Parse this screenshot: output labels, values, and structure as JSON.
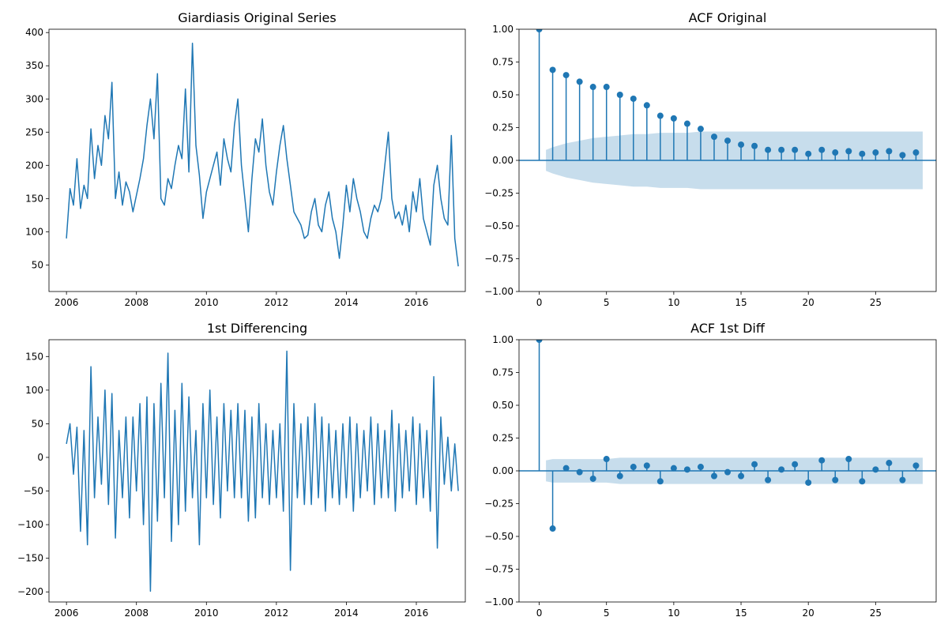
{
  "chart_data": [
    {
      "type": "line",
      "title": "Giardiasis Original Series",
      "xlabel": "",
      "ylabel": "",
      "xlim": [
        2005.5,
        2017.4
      ],
      "ylim": [
        10,
        405
      ],
      "xticks": [
        2006,
        2008,
        2010,
        2012,
        2014,
        2016
      ],
      "yticks": [
        50,
        100,
        150,
        200,
        250,
        300,
        350,
        400
      ],
      "grid": false,
      "color": "#1f77b4",
      "series": [
        {
          "x": [
            2006.0,
            2006.1,
            2006.2,
            2006.3,
            2006.4,
            2006.5,
            2006.6,
            2006.7,
            2006.8,
            2006.9,
            2007.0,
            2007.1,
            2007.2,
            2007.3,
            2007.4,
            2007.5,
            2007.6,
            2007.7,
            2007.8,
            2007.9,
            2008.0,
            2008.1,
            2008.2,
            2008.3,
            2008.4,
            2008.5,
            2008.6,
            2008.7,
            2008.8,
            2008.9,
            2009.0,
            2009.1,
            2009.2,
            2009.3,
            2009.4,
            2009.5,
            2009.6,
            2009.7,
            2009.8,
            2009.9,
            2010.0,
            2010.1,
            2010.2,
            2010.3,
            2010.4,
            2010.5,
            2010.6,
            2010.7,
            2010.8,
            2010.9,
            2011.0,
            2011.1,
            2011.2,
            2011.3,
            2011.4,
            2011.5,
            2011.6,
            2011.7,
            2011.8,
            2011.9,
            2012.0,
            2012.1,
            2012.2,
            2012.3,
            2012.4,
            2012.5,
            2012.6,
            2012.7,
            2012.8,
            2012.9,
            2013.0,
            2013.1,
            2013.2,
            2013.3,
            2013.4,
            2013.5,
            2013.6,
            2013.7,
            2013.8,
            2013.9,
            2014.0,
            2014.1,
            2014.2,
            2014.3,
            2014.4,
            2014.5,
            2014.6,
            2014.7,
            2014.8,
            2014.9,
            2015.0,
            2015.1,
            2015.2,
            2015.3,
            2015.4,
            2015.5,
            2015.6,
            2015.7,
            2015.8,
            2015.9,
            2016.0,
            2016.1,
            2016.2,
            2016.3,
            2016.4,
            2016.5,
            2016.6,
            2016.7,
            2016.8,
            2016.9,
            2017.0,
            2017.1,
            2017.2
          ],
          "y": [
            90,
            165,
            140,
            210,
            135,
            170,
            150,
            255,
            180,
            230,
            200,
            275,
            240,
            325,
            150,
            190,
            140,
            175,
            160,
            130,
            155,
            180,
            210,
            260,
            300,
            240,
            338,
            150,
            140,
            180,
            165,
            200,
            230,
            210,
            315,
            190,
            384,
            230,
            185,
            120,
            160,
            180,
            200,
            220,
            170,
            240,
            210,
            190,
            260,
            300,
            200,
            150,
            100,
            180,
            240,
            220,
            270,
            200,
            160,
            140,
            190,
            230,
            260,
            210,
            170,
            130,
            120,
            110,
            90,
            95,
            130,
            150,
            110,
            100,
            140,
            160,
            120,
            100,
            60,
            110,
            170,
            130,
            180,
            150,
            130,
            100,
            90,
            120,
            140,
            130,
            150,
            200,
            250,
            150,
            120,
            130,
            110,
            140,
            100,
            160,
            130,
            180,
            120,
            100,
            80,
            170,
            200,
            150,
            120,
            110,
            245,
            90,
            48
          ]
        }
      ]
    },
    {
      "type": "stem",
      "title": "ACF Original",
      "xlabel": "",
      "ylabel": "",
      "xlim": [
        -1.5,
        29.5
      ],
      "ylim": [
        -1.0,
        1.0
      ],
      "xticks": [
        0,
        5,
        10,
        15,
        20,
        25
      ],
      "yticks": [
        -1.0,
        -0.75,
        -0.5,
        -0.25,
        0.0,
        0.25,
        0.5,
        0.75,
        1.0
      ],
      "tick_labels_y": [
        "−1.00",
        "−0.75",
        "−0.50",
        "−0.25",
        "0.00",
        "0.25",
        "0.50",
        "0.75",
        "1.00"
      ],
      "grid": false,
      "color": "#1f77b4",
      "lags": [
        0,
        1,
        2,
        3,
        4,
        5,
        6,
        7,
        8,
        9,
        10,
        11,
        12,
        13,
        14,
        15,
        16,
        17,
        18,
        19,
        20,
        21,
        22,
        23,
        24,
        25,
        26,
        27,
        28
      ],
      "values": [
        1.0,
        0.69,
        0.65,
        0.6,
        0.56,
        0.56,
        0.5,
        0.47,
        0.42,
        0.34,
        0.32,
        0.28,
        0.24,
        0.18,
        0.15,
        0.12,
        0.11,
        0.08,
        0.08,
        0.08,
        0.05,
        0.08,
        0.06,
        0.07,
        0.05,
        0.06,
        0.07,
        0.04,
        0.06
      ],
      "confidence_band": [
        0.08,
        0.1,
        0.13,
        0.15,
        0.17,
        0.18,
        0.19,
        0.2,
        0.2,
        0.21,
        0.21,
        0.21,
        0.22,
        0.22,
        0.22,
        0.22,
        0.22,
        0.22,
        0.22,
        0.22,
        0.22,
        0.22,
        0.22,
        0.22,
        0.22,
        0.22,
        0.22,
        0.22,
        0.22
      ]
    },
    {
      "type": "line",
      "title": "1st Differencing",
      "xlabel": "",
      "ylabel": "",
      "xlim": [
        2005.5,
        2017.4
      ],
      "ylim": [
        -215,
        175
      ],
      "xticks": [
        2006,
        2008,
        2010,
        2012,
        2014,
        2016
      ],
      "yticks": [
        -200,
        -150,
        -100,
        -50,
        0,
        50,
        100,
        150
      ],
      "tick_labels_y": [
        "−200",
        "−150",
        "−100",
        "−50",
        "0",
        "50",
        "100",
        "150"
      ],
      "grid": false,
      "color": "#1f77b4",
      "series": [
        {
          "x": [
            2006.0,
            2006.1,
            2006.2,
            2006.3,
            2006.4,
            2006.5,
            2006.6,
            2006.7,
            2006.8,
            2006.9,
            2007.0,
            2007.1,
            2007.2,
            2007.3,
            2007.4,
            2007.5,
            2007.6,
            2007.7,
            2007.8,
            2007.9,
            2008.0,
            2008.1,
            2008.2,
            2008.3,
            2008.4,
            2008.5,
            2008.6,
            2008.7,
            2008.8,
            2008.9,
            2009.0,
            2009.1,
            2009.2,
            2009.3,
            2009.4,
            2009.5,
            2009.6,
            2009.7,
            2009.8,
            2009.9,
            2010.0,
            2010.1,
            2010.2,
            2010.3,
            2010.4,
            2010.5,
            2010.6,
            2010.7,
            2010.8,
            2010.9,
            2011.0,
            2011.1,
            2011.2,
            2011.3,
            2011.4,
            2011.5,
            2011.6,
            2011.7,
            2011.8,
            2011.9,
            2012.0,
            2012.1,
            2012.2,
            2012.3,
            2012.4,
            2012.5,
            2012.6,
            2012.7,
            2012.8,
            2012.9,
            2013.0,
            2013.1,
            2013.2,
            2013.3,
            2013.4,
            2013.5,
            2013.6,
            2013.7,
            2013.8,
            2013.9,
            2014.0,
            2014.1,
            2014.2,
            2014.3,
            2014.4,
            2014.5,
            2014.6,
            2014.7,
            2014.8,
            2014.9,
            2015.0,
            2015.1,
            2015.2,
            2015.3,
            2015.4,
            2015.5,
            2015.6,
            2015.7,
            2015.8,
            2015.9,
            2016.0,
            2016.1,
            2016.2,
            2016.3,
            2016.4,
            2016.5,
            2016.6,
            2016.7,
            2016.8,
            2016.9,
            2017.0,
            2017.1,
            2017.2
          ],
          "y": [
            20,
            50,
            -25,
            45,
            -110,
            40,
            -130,
            135,
            -60,
            60,
            -40,
            100,
            -70,
            95,
            -120,
            40,
            -60,
            60,
            -90,
            60,
            -50,
            80,
            -100,
            90,
            -199,
            80,
            -95,
            110,
            -60,
            155,
            -125,
            70,
            -100,
            110,
            -80,
            90,
            -60,
            40,
            -130,
            80,
            -60,
            100,
            -70,
            60,
            -90,
            80,
            -50,
            70,
            -60,
            80,
            -60,
            70,
            -95,
            60,
            -90,
            80,
            -60,
            50,
            -70,
            40,
            -60,
            50,
            -80,
            158,
            -168,
            80,
            -60,
            50,
            -70,
            60,
            -70,
            80,
            -60,
            60,
            -80,
            50,
            -60,
            40,
            -70,
            50,
            -60,
            60,
            -80,
            50,
            -60,
            40,
            -50,
            60,
            -70,
            50,
            -60,
            40,
            -60,
            70,
            -80,
            50,
            -60,
            40,
            -50,
            60,
            -70,
            50,
            -60,
            40,
            -80,
            120,
            -135,
            60,
            -40,
            30,
            -50,
            20,
            -50
          ]
        }
      ]
    },
    {
      "type": "stem",
      "title": "ACF 1st Diff",
      "xlabel": "",
      "ylabel": "",
      "xlim": [
        -1.5,
        29.5
      ],
      "ylim": [
        -1.0,
        1.0
      ],
      "xticks": [
        0,
        5,
        10,
        15,
        20,
        25
      ],
      "yticks": [
        -1.0,
        -0.75,
        -0.5,
        -0.25,
        0.0,
        0.25,
        0.5,
        0.75,
        1.0
      ],
      "tick_labels_y": [
        "−1.00",
        "−0.75",
        "−0.50",
        "−0.25",
        "0.00",
        "0.25",
        "0.50",
        "0.75",
        "1.00"
      ],
      "grid": false,
      "color": "#1f77b4",
      "lags": [
        0,
        1,
        2,
        3,
        4,
        5,
        6,
        7,
        8,
        9,
        10,
        11,
        12,
        13,
        14,
        15,
        16,
        17,
        18,
        19,
        20,
        21,
        22,
        23,
        24,
        25,
        26,
        27,
        28
      ],
      "values": [
        1.0,
        -0.44,
        0.02,
        -0.01,
        -0.06,
        0.09,
        -0.04,
        0.03,
        0.04,
        -0.08,
        0.02,
        0.01,
        0.03,
        -0.04,
        -0.01,
        -0.04,
        0.05,
        -0.07,
        0.01,
        0.05,
        -0.09,
        0.08,
        -0.07,
        0.09,
        -0.08,
        0.01,
        0.06,
        -0.07,
        0.04
      ],
      "confidence_band": [
        0.08,
        0.09,
        0.09,
        0.09,
        0.09,
        0.09,
        0.1,
        0.1,
        0.1,
        0.1,
        0.1,
        0.1,
        0.1,
        0.1,
        0.1,
        0.1,
        0.1,
        0.1,
        0.1,
        0.1,
        0.1,
        0.1,
        0.1,
        0.1,
        0.1,
        0.1,
        0.1,
        0.1,
        0.1
      ]
    }
  ]
}
